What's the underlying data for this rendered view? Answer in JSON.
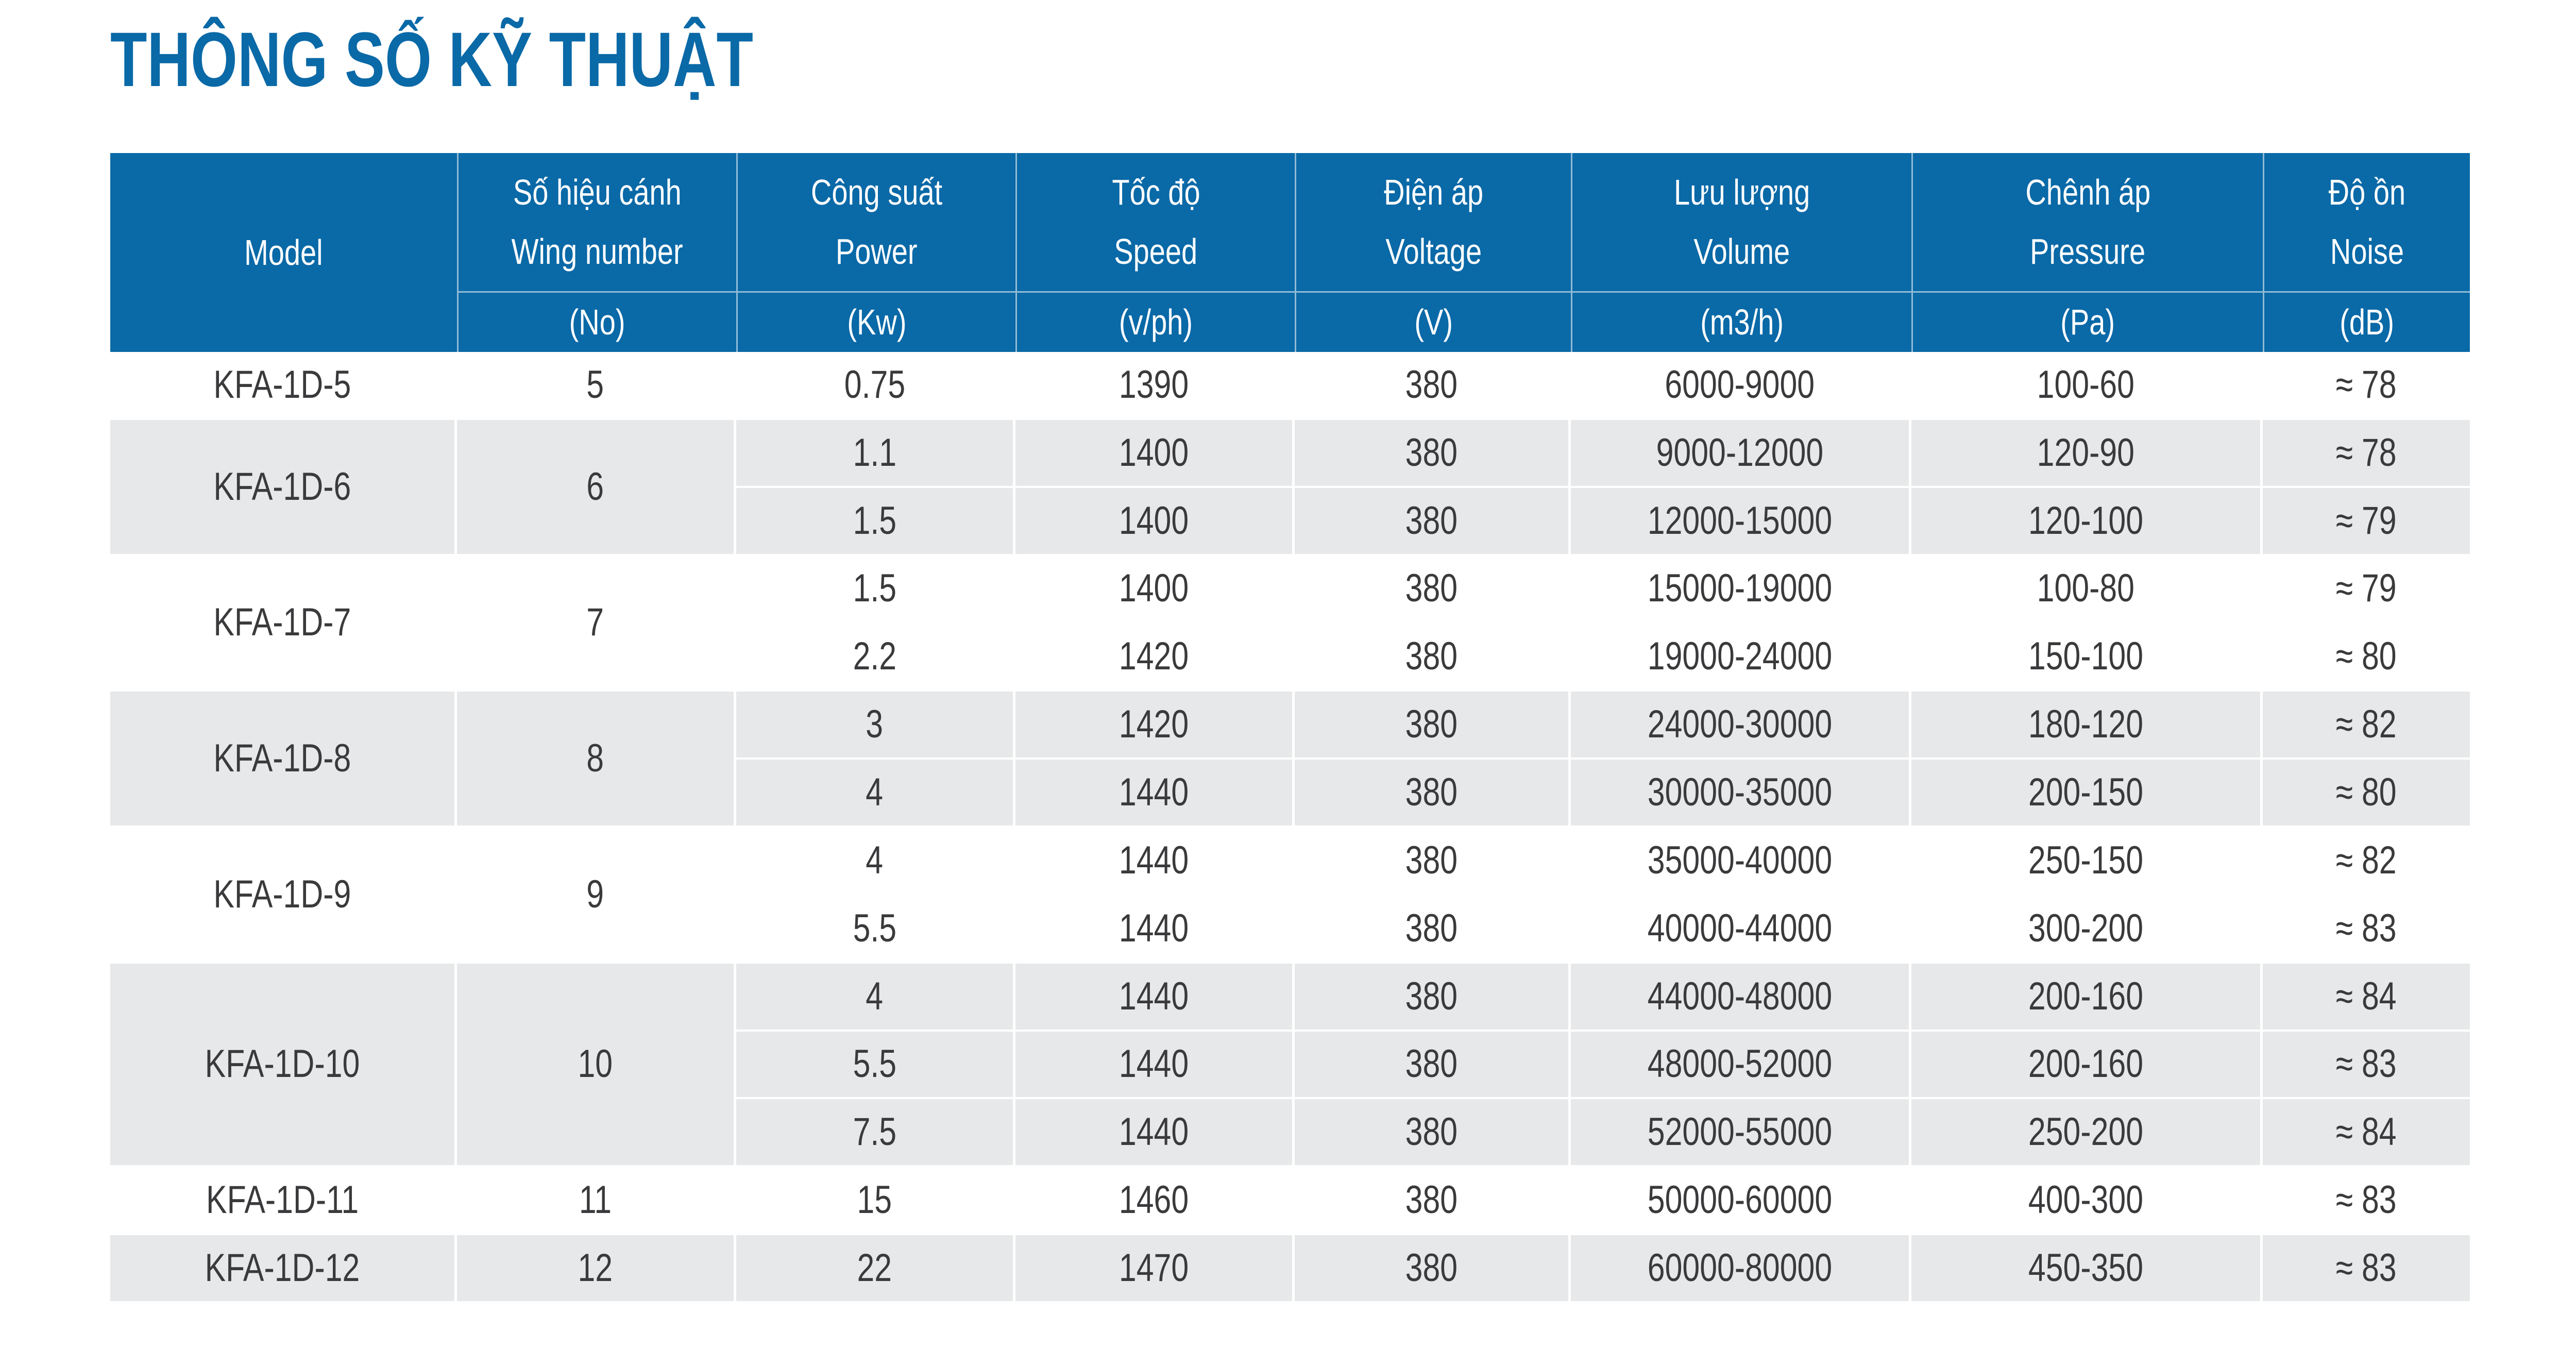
{
  "page": {
    "title": "THÔNG SỐ KỸ THUẬT"
  },
  "colors": {
    "accent_blue": "#0A69A7",
    "row_gray": "#E7E8E9",
    "text_dark": "#3A3A3C",
    "header_text": "#FFFFFF"
  },
  "table": {
    "header": {
      "model_label": "Model",
      "columns": [
        {
          "key": "wing-number",
          "vi": "Số hiệu cánh",
          "en": "Wing number",
          "unit": "(No)"
        },
        {
          "key": "power",
          "vi": "Công suất",
          "en": "Power",
          "unit": "(Kw)"
        },
        {
          "key": "speed",
          "vi": "Tốc độ",
          "en": "Speed",
          "unit": "(v/ph)"
        },
        {
          "key": "voltage",
          "vi": "Điện áp",
          "en": "Voltage",
          "unit": "(V)"
        },
        {
          "key": "volume",
          "vi": "Lưu lượng",
          "en": "Volume",
          "unit": "(m3/h)"
        },
        {
          "key": "pressure",
          "vi": "Chênh áp",
          "en": "Pressure",
          "unit": "(Pa)"
        },
        {
          "key": "noise",
          "vi": "Độ ồn",
          "en": "Noise",
          "unit": "(dB)"
        }
      ]
    },
    "groups": [
      {
        "model": "KFA-1D-5",
        "wing_number": "5",
        "shade": "white",
        "rows": [
          [
            "0.75",
            "1390",
            "380",
            "6000-9000",
            "100-60",
            "≈ 78"
          ]
        ]
      },
      {
        "model": "KFA-1D-6",
        "wing_number": "6",
        "shade": "gray",
        "rows": [
          [
            "1.1",
            "1400",
            "380",
            "9000-12000",
            "120-90",
            "≈ 78"
          ],
          [
            "1.5",
            "1400",
            "380",
            "12000-15000",
            "120-100",
            "≈ 79"
          ]
        ]
      },
      {
        "model": "KFA-1D-7",
        "wing_number": "7",
        "shade": "white",
        "rows": [
          [
            "1.5",
            "1400",
            "380",
            "15000-19000",
            "100-80",
            "≈ 79"
          ],
          [
            "2.2",
            "1420",
            "380",
            "19000-24000",
            "150-100",
            "≈ 80"
          ]
        ]
      },
      {
        "model": "KFA-1D-8",
        "wing_number": "8",
        "shade": "gray",
        "rows": [
          [
            "3",
            "1420",
            "380",
            "24000-30000",
            "180-120",
            "≈ 82"
          ],
          [
            "4",
            "1440",
            "380",
            "30000-35000",
            "200-150",
            "≈ 80"
          ]
        ]
      },
      {
        "model": "KFA-1D-9",
        "wing_number": "9",
        "shade": "white",
        "rows": [
          [
            "4",
            "1440",
            "380",
            "35000-40000",
            "250-150",
            "≈ 82"
          ],
          [
            "5.5",
            "1440",
            "380",
            "40000-44000",
            "300-200",
            "≈ 83"
          ]
        ]
      },
      {
        "model": "KFA-1D-10",
        "wing_number": "10",
        "shade": "gray",
        "rows": [
          [
            "4",
            "1440",
            "380",
            "44000-48000",
            "200-160",
            "≈ 84"
          ],
          [
            "5.5",
            "1440",
            "380",
            "48000-52000",
            "200-160",
            "≈ 83"
          ],
          [
            "7.5",
            "1440",
            "380",
            "52000-55000",
            "250-200",
            "≈ 84"
          ]
        ]
      },
      {
        "model": "KFA-1D-11",
        "wing_number": "11",
        "shade": "white",
        "rows": [
          [
            "15",
            "1460",
            "380",
            "50000-60000",
            "400-300",
            "≈ 83"
          ]
        ]
      },
      {
        "model": "KFA-1D-12",
        "wing_number": "12",
        "shade": "gray",
        "rows": [
          [
            "22",
            "1470",
            "380",
            "60000-80000",
            "450-350",
            "≈ 83"
          ]
        ]
      }
    ]
  }
}
